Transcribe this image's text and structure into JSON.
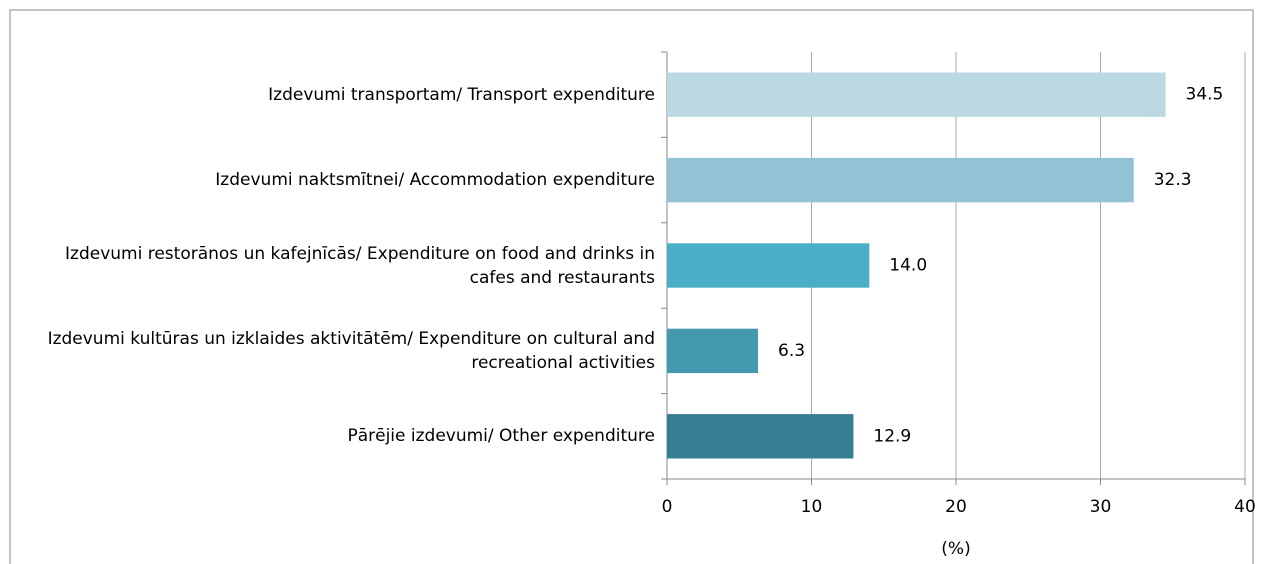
{
  "chart_data": {
    "type": "barh",
    "categories": [
      "Izdevumi transportam/ Transport expenditure",
      "Izdevumi naktsmītnei/ Accommodation expenditure",
      "Izdevumi restorānos un kafejnīcās/ Expenditure on food and drinks in cafes and restaurants",
      "Izdevumi kultūras un izklaides aktivitātēm/ Expenditure on cultural and recreational activities",
      "Pārējie izdevumi/ Other expenditure"
    ],
    "values": [
      34.5,
      32.3,
      14.0,
      6.3,
      12.9
    ],
    "value_labels": [
      "34.5",
      "32.3",
      "14.0",
      "6.3",
      "12.9"
    ],
    "colors": [
      "#bcd8e3",
      "#92c2d3",
      "#4aaec6",
      "#4399b0",
      "#367f93"
    ],
    "xlabel": "(%)",
    "xlim": [
      0,
      40
    ],
    "xticks": [
      0,
      10,
      20,
      30,
      40
    ],
    "grid": true
  }
}
